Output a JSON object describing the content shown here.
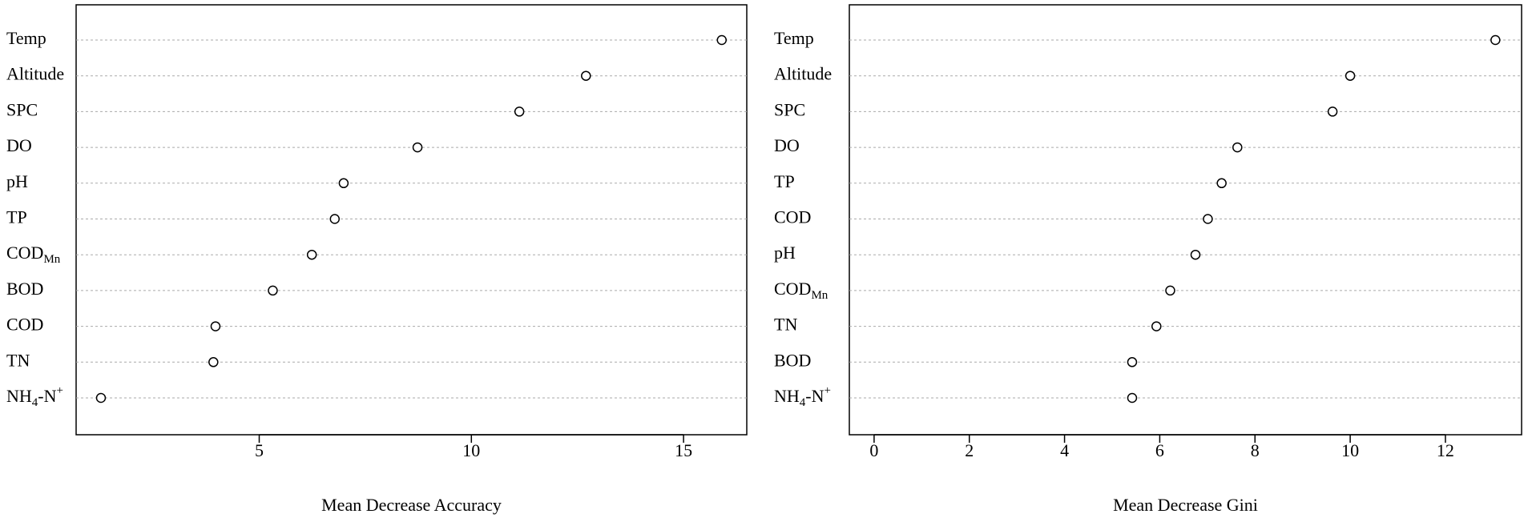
{
  "chart_data": [
    {
      "type": "dot",
      "xlabel": "Mean Decrease Accuracy",
      "categories": [
        "Temp",
        "Altitude",
        "SPC",
        "DO",
        "pH",
        "TP",
        [
          {
            "text": "COD"
          },
          {
            "text": "Mn",
            "shift": "sub"
          }
        ],
        "BOD",
        "COD",
        "TN",
        [
          {
            "text": "NH"
          },
          {
            "text": "4",
            "shift": "sub"
          },
          {
            "text": "-N"
          },
          {
            "text": "+",
            "shift": "sup"
          }
        ]
      ],
      "values": [
        15.9,
        12.7,
        11.13,
        8.73,
        6.99,
        6.78,
        6.24,
        5.32,
        3.97,
        3.92,
        1.27
      ],
      "xlim": [
        0.685,
        16.49
      ],
      "xticks": [
        5,
        10,
        15
      ],
      "grid": true,
      "color": "#000000"
    },
    {
      "type": "dot",
      "xlabel": "Mean Decrease Gini",
      "categories": [
        "Temp",
        "Altitude",
        "SPC",
        "DO",
        "TP",
        "COD",
        "pH",
        [
          {
            "text": "COD"
          },
          {
            "text": "Mn",
            "shift": "sub"
          }
        ],
        "TN",
        "BOD",
        [
          {
            "text": "NH"
          },
          {
            "text": "4",
            "shift": "sub"
          },
          {
            "text": "-N"
          },
          {
            "text": "+",
            "shift": "sup"
          }
        ]
      ],
      "values": [
        13.05,
        10.0,
        9.63,
        7.63,
        7.3,
        7.01,
        6.75,
        6.22,
        5.93,
        5.42,
        5.42
      ],
      "xlim": [
        -0.52,
        13.6
      ],
      "xticks": [
        0,
        2,
        4,
        6,
        8,
        10,
        12
      ],
      "grid": true,
      "color": "#000000"
    }
  ]
}
